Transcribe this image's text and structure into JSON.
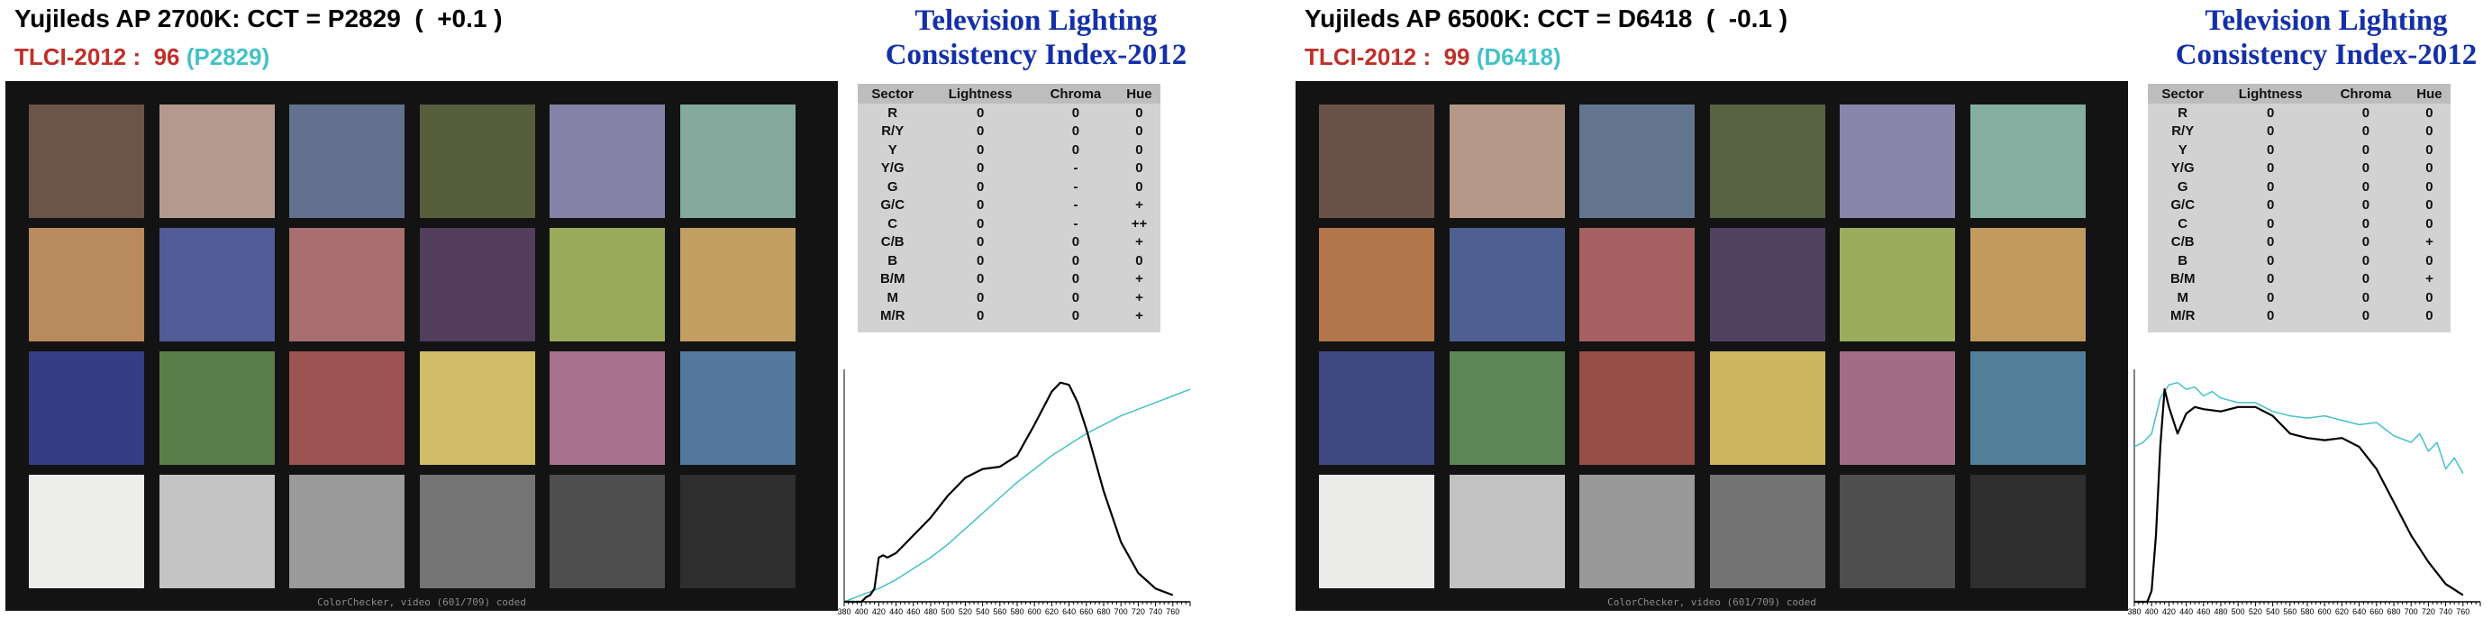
{
  "panels": [
    {
      "header": {
        "cct_line": "Yujileds AP 2700K: CCT = P2829  (  +0.1 )",
        "tlci_label": "TLCI-2012 :  ",
        "tlci_value": "96",
        "tlci_ref": " (P2829)"
      },
      "title_line1": "Television Lighting",
      "title_line2": "Consistency Index-2012",
      "swatches": [
        "#6b5548",
        "#b49a8e",
        "#64718e",
        "#565e3e",
        "#8482a6",
        "#84aa9e",
        "#b98a5e",
        "#515c96",
        "#a86e70",
        "#523e5c",
        "#9aaa5b",
        "#c19f62",
        "#343e82",
        "#5a7e4a",
        "#9c5452",
        "#d0bc69",
        "#a67290",
        "#55799e",
        "#ededeb",
        "#c4c4c4",
        "#9a9a9a",
        "#747474",
        "#4e4e4e",
        "#2e2e2e"
      ],
      "checker_caption": "ColorChecker, video (601/709) coded",
      "table": {
        "headers": [
          "Sector",
          "Lightness",
          "Chroma",
          "Hue"
        ],
        "rows": [
          [
            "R",
            "0",
            "0",
            "0"
          ],
          [
            "R/Y",
            "0",
            "0",
            "0"
          ],
          [
            "Y",
            "0",
            "0",
            "0"
          ],
          [
            "Y/G",
            "0",
            "-",
            "0"
          ],
          [
            "G",
            "0",
            "-",
            "0"
          ],
          [
            "G/C",
            "0",
            "-",
            "+"
          ],
          [
            "C",
            "0",
            "-",
            "++"
          ],
          [
            "C/B",
            "0",
            "0",
            "+"
          ],
          [
            "B",
            "0",
            "0",
            "0"
          ],
          [
            "B/M",
            "0",
            "0",
            "+"
          ],
          [
            "M",
            "0",
            "0",
            "+"
          ],
          [
            "M/R",
            "0",
            "0",
            "+"
          ]
        ]
      },
      "chart_data": {
        "type": "line",
        "title": "",
        "xlabel": "",
        "ylabel": "",
        "xlim": [
          380,
          780
        ],
        "ylim": [
          0,
          1.05
        ],
        "x_ticks": [
          "380",
          "400",
          "420",
          "440",
          "460",
          "480",
          "500",
          "520",
          "540",
          "560",
          "580",
          "600",
          "620",
          "640",
          "660",
          "680",
          "700",
          "720",
          "740",
          "760"
        ],
        "series": [
          {
            "color": "#000000",
            "x": [
              380,
              400,
              405,
              410,
              415,
              420,
              425,
              430,
              440,
              450,
              460,
              480,
              500,
              520,
              540,
              560,
              580,
              600,
              620,
              630,
              640,
              650,
              660,
              680,
              700,
              720,
              740,
              760
            ],
            "y": [
              0,
              0,
              0.02,
              0.03,
              0.06,
              0.2,
              0.21,
              0.2,
              0.22,
              0.26,
              0.3,
              0.38,
              0.48,
              0.56,
              0.6,
              0.61,
              0.66,
              0.8,
              0.95,
              0.99,
              0.98,
              0.9,
              0.78,
              0.5,
              0.27,
              0.13,
              0.06,
              0.03
            ]
          },
          {
            "color": "#45c1c8",
            "x": [
              380,
              400,
              420,
              440,
              460,
              480,
              500,
              520,
              540,
              560,
              580,
              600,
              620,
              640,
              660,
              680,
              700,
              720,
              740,
              760,
              780
            ],
            "y": [
              0,
              0.03,
              0.06,
              0.1,
              0.15,
              0.2,
              0.26,
              0.33,
              0.4,
              0.47,
              0.54,
              0.6,
              0.66,
              0.71,
              0.76,
              0.8,
              0.84,
              0.87,
              0.9,
              0.93,
              0.96
            ]
          }
        ]
      }
    },
    {
      "header": {
        "cct_line": "Yujileds AP 6500K: CCT = D6418  (  -0.1 )",
        "tlci_label": "TLCI-2012 :  ",
        "tlci_value": "99",
        "tlci_ref": " (D6418)"
      },
      "title_line1": "Television Lighting",
      "title_line2": "Consistency Index-2012",
      "swatches": [
        "#6b5248",
        "#b59887",
        "#64758f",
        "#566443",
        "#8885aa",
        "#84aea0",
        "#b4774c",
        "#4f5f92",
        "#a76062",
        "#51415e",
        "#9bac5f",
        "#c09a5e",
        "#3e4982",
        "#5c8754",
        "#954e47",
        "#cfb55f",
        "#a36c86",
        "#537e99",
        "#ebebea",
        "#c3c3c3",
        "#999999",
        "#737373",
        "#4e4e4e",
        "#2e2e2e"
      ],
      "checker_caption": "ColorChecker, video (601/709) coded",
      "table": {
        "headers": [
          "Sector",
          "Lightness",
          "Chroma",
          "Hue"
        ],
        "rows": [
          [
            "R",
            "0",
            "0",
            "0"
          ],
          [
            "R/Y",
            "0",
            "0",
            "0"
          ],
          [
            "Y",
            "0",
            "0",
            "0"
          ],
          [
            "Y/G",
            "0",
            "0",
            "0"
          ],
          [
            "G",
            "0",
            "0",
            "0"
          ],
          [
            "G/C",
            "0",
            "0",
            "0"
          ],
          [
            "C",
            "0",
            "0",
            "0"
          ],
          [
            "C/B",
            "0",
            "0",
            "+"
          ],
          [
            "B",
            "0",
            "0",
            "0"
          ],
          [
            "B/M",
            "0",
            "0",
            "+"
          ],
          [
            "M",
            "0",
            "0",
            "0"
          ],
          [
            "M/R",
            "0",
            "0",
            "0"
          ]
        ]
      },
      "chart_data": {
        "type": "line",
        "title": "",
        "xlabel": "",
        "ylabel": "",
        "xlim": [
          380,
          780
        ],
        "ylim": [
          0,
          1.05
        ],
        "x_ticks": [
          "380",
          "400",
          "420",
          "440",
          "460",
          "480",
          "500",
          "520",
          "540",
          "560",
          "580",
          "600",
          "620",
          "640",
          "660",
          "680",
          "700",
          "720",
          "740",
          "760"
        ],
        "series": [
          {
            "color": "#000000",
            "x": [
              380,
              395,
              400,
              405,
              410,
              415,
              420,
              430,
              440,
              450,
              460,
              480,
              500,
              520,
              540,
              560,
              580,
              600,
              620,
              640,
              660,
              680,
              700,
              720,
              740,
              760
            ],
            "y": [
              0,
              0,
              0.05,
              0.3,
              0.7,
              0.96,
              0.88,
              0.76,
              0.85,
              0.88,
              0.87,
              0.86,
              0.88,
              0.88,
              0.84,
              0.76,
              0.74,
              0.73,
              0.74,
              0.7,
              0.6,
              0.45,
              0.3,
              0.18,
              0.08,
              0.03
            ]
          },
          {
            "color": "#45c1c8",
            "x": [
              380,
              390,
              400,
              410,
              420,
              430,
              440,
              450,
              460,
              470,
              480,
              500,
              520,
              540,
              560,
              580,
              600,
              620,
              640,
              660,
              680,
              700,
              710,
              720,
              730,
              740,
              750,
              760
            ],
            "y": [
              0.7,
              0.72,
              0.76,
              0.92,
              0.98,
              0.99,
              0.96,
              0.97,
              0.93,
              0.95,
              0.92,
              0.9,
              0.9,
              0.86,
              0.84,
              0.83,
              0.84,
              0.82,
              0.8,
              0.81,
              0.75,
              0.72,
              0.76,
              0.68,
              0.72,
              0.6,
              0.65,
              0.58
            ]
          }
        ]
      }
    }
  ]
}
